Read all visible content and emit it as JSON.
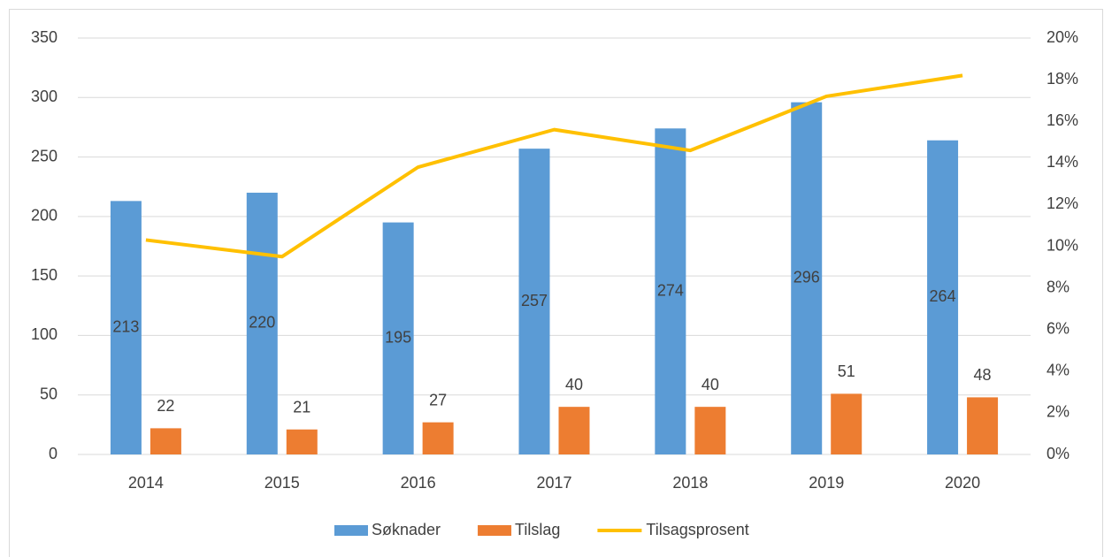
{
  "chart_data": {
    "type": "bar",
    "categories": [
      "2014",
      "2015",
      "2016",
      "2017",
      "2018",
      "2019",
      "2020"
    ],
    "series": [
      {
        "name": "Søknader",
        "color": "#5b9bd5",
        "values": [
          213,
          220,
          195,
          257,
          274,
          296,
          264
        ]
      },
      {
        "name": "Tilslag",
        "color": "#ed7d31",
        "values": [
          22,
          21,
          27,
          40,
          40,
          51,
          48
        ]
      },
      {
        "name": "Tilsagsprosent",
        "color": "#ffc000",
        "type": "line",
        "axis": "y2",
        "values": [
          10.3,
          9.5,
          13.8,
          15.6,
          14.6,
          17.2,
          18.2
        ]
      }
    ],
    "ylim": [
      0,
      350
    ],
    "yticks": [
      0,
      50,
      100,
      150,
      200,
      250,
      300,
      350
    ],
    "y2lim": [
      0,
      20
    ],
    "y2ticks": [
      {
        "value": 0,
        "label": "0%"
      },
      {
        "value": 2,
        "label": "2%"
      },
      {
        "value": 4,
        "label": "4%"
      },
      {
        "value": 6,
        "label": "6%"
      },
      {
        "value": 8,
        "label": "8%"
      },
      {
        "value": 10,
        "label": "10%"
      },
      {
        "value": 12,
        "label": "12%"
      },
      {
        "value": 14,
        "label": "14%"
      },
      {
        "value": 16,
        "label": "16%"
      },
      {
        "value": 18,
        "label": "18%"
      },
      {
        "value": 20,
        "label": "20%"
      }
    ],
    "grid": true,
    "legend": "bottom"
  }
}
